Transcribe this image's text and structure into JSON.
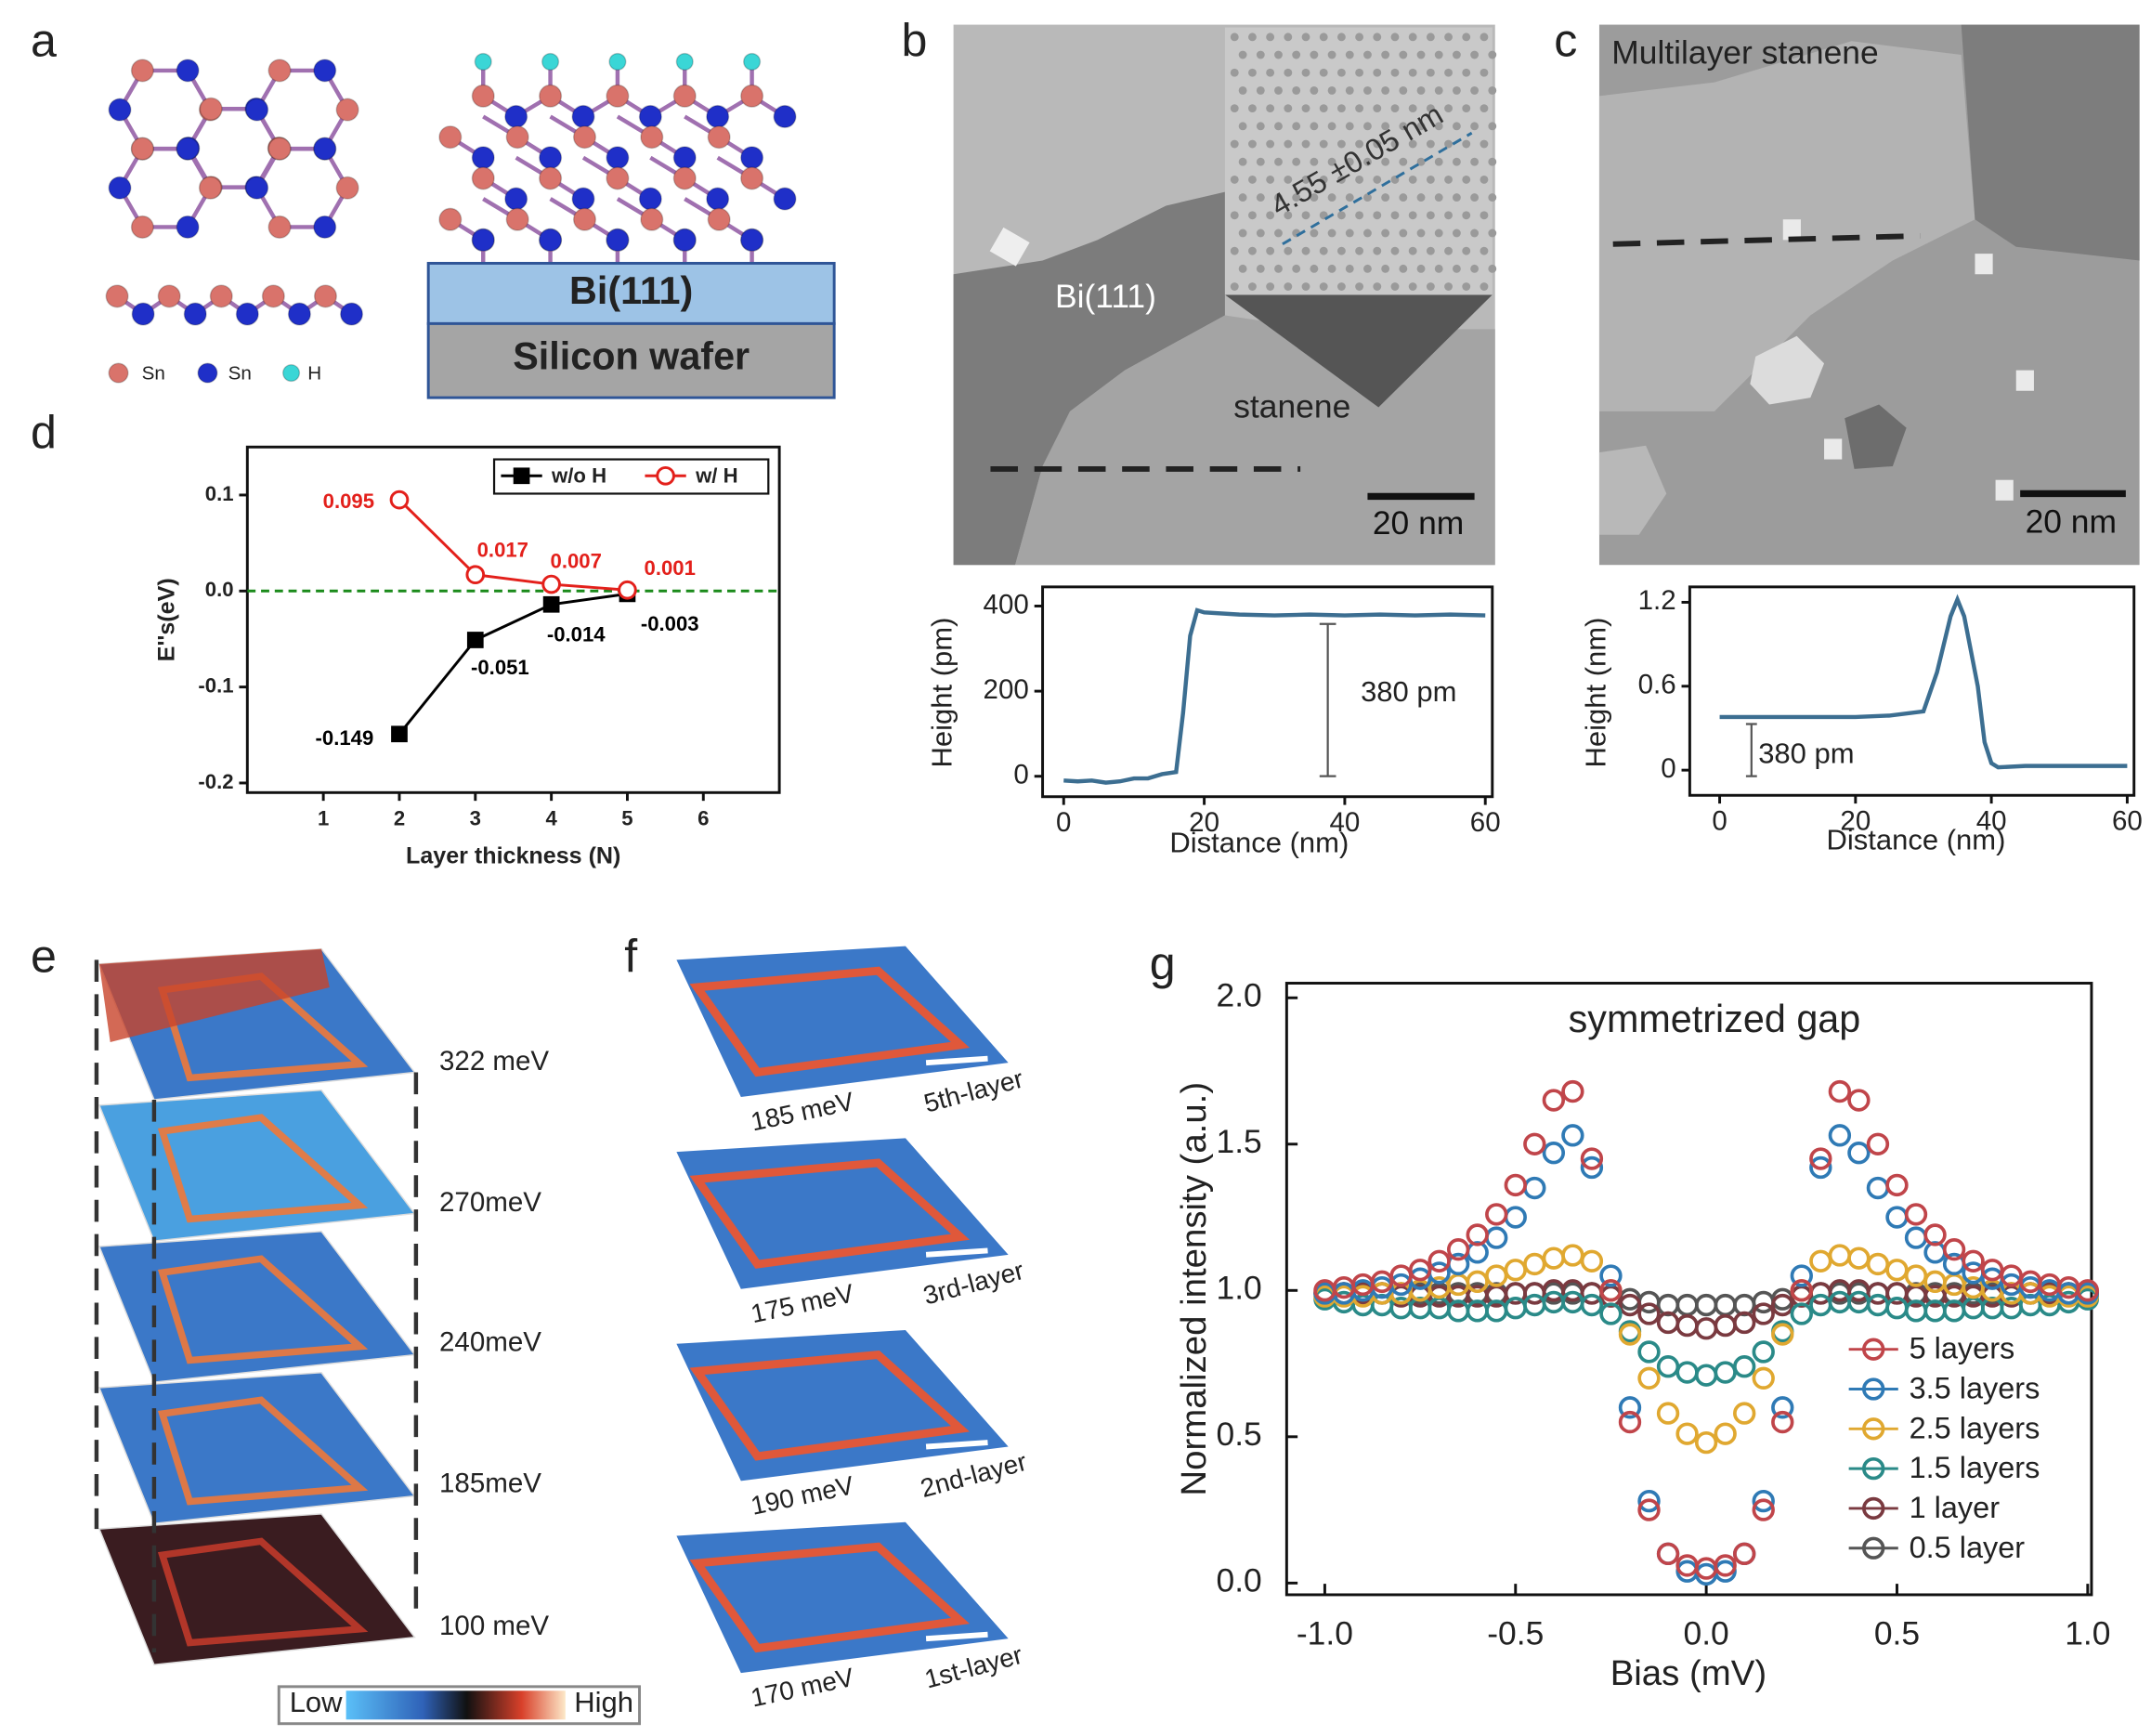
{
  "figure": {
    "panel_labels": [
      "a",
      "b",
      "c",
      "d",
      "e",
      "f",
      "g"
    ],
    "a": {
      "legend": [
        "Sn",
        "Sn",
        "H"
      ],
      "substrate": "Bi(111)",
      "wafer": "Silicon wafer"
    },
    "b": {
      "terrace": "Bi(111)",
      "island": "stanene",
      "inset_period": "4.55 ±0.05 nm",
      "scale_bar": "20 nm"
    },
    "c": {
      "title": "Multilayer stanene",
      "scale_bar": "20 nm"
    },
    "e": {
      "energies": [
        "322 meV",
        "270meV",
        "240meV",
        "185meV",
        "100 meV"
      ],
      "colorbar": [
        "Low",
        "High"
      ]
    },
    "f": {
      "maps": [
        {
          "energy": "185 meV",
          "layer": "5th-layer"
        },
        {
          "energy": "175 meV",
          "layer": "3rd-layer"
        },
        {
          "energy": "190 meV",
          "layer": "2nd-layer"
        },
        {
          "energy": "170 meV",
          "layer": "1st-layer"
        }
      ]
    }
  },
  "chart_data": [
    {
      "type": "line",
      "xlabel": "Layer thickness (N)",
      "ylabel": "E''s(eV)",
      "x": [
        2,
        3,
        4,
        5
      ],
      "series": [
        {
          "name": "w/o H",
          "color": "#000000",
          "marker": "square",
          "values": [
            -0.149,
            -0.051,
            -0.014,
            -0.003
          ]
        },
        {
          "name": "w/ H",
          "color": "#e3201b",
          "marker": "open-circle",
          "values": [
            0.095,
            0.017,
            0.007,
            0.001
          ]
        }
      ],
      "xlim": [
        0,
        7
      ],
      "ylim": [
        -0.21,
        0.15
      ],
      "xticks": [
        1,
        2,
        3,
        4,
        5,
        6
      ],
      "yticks": [
        0.1,
        {
          "value": 0,
          "label": "0.0"
        },
        -0.1,
        -0.2
      ],
      "reference_line": {
        "value": 0,
        "color": "#1a8a1a"
      },
      "data_labels": true,
      "legend": "upper-right"
    },
    {
      "type": "line",
      "xlabel": "Distance (nm)",
      "ylabel": "Height (pm)",
      "annotation": "380 pm",
      "x": [
        0,
        2,
        4,
        6,
        8,
        10,
        12,
        14,
        16,
        17,
        18,
        19,
        20,
        25,
        30,
        35,
        40,
        45,
        50,
        55,
        60
      ],
      "series": [
        {
          "color": "#3c6e91",
          "values": [
            -10,
            -12,
            -10,
            -15,
            -12,
            -5,
            -5,
            5,
            10,
            150,
            330,
            390,
            385,
            380,
            378,
            380,
            378,
            380,
            378,
            380,
            378
          ]
        }
      ],
      "xlim": [
        -3,
        61
      ],
      "ylim": [
        -48,
        445
      ],
      "xticks": [
        0,
        20,
        40,
        60
      ],
      "yticks": [
        0,
        200,
        400
      ]
    },
    {
      "type": "line",
      "xlabel": "Distance (nm)",
      "ylabel": "Height (nm)",
      "annotation": "380 pm",
      "x": [
        0,
        5,
        10,
        20,
        25,
        30,
        32,
        34,
        35,
        36,
        38,
        39,
        40,
        41,
        45,
        50,
        55,
        60
      ],
      "series": [
        {
          "color": "#3c6e91",
          "values": [
            0.38,
            0.38,
            0.38,
            0.38,
            0.39,
            0.42,
            0.7,
            1.1,
            1.22,
            1.1,
            0.6,
            0.2,
            0.05,
            0.02,
            0.03,
            0.03,
            0.03,
            0.03
          ]
        }
      ],
      "xlim": [
        -4.4,
        61
      ],
      "ylim": [
        -0.18,
        1.31
      ],
      "xticks": [
        0,
        20,
        40,
        60
      ],
      "yticks": [
        0,
        0.6,
        1.2
      ]
    },
    {
      "type": "scatter",
      "title": "symmetrized gap",
      "xlabel": "Bias (mV)",
      "ylabel": "Normalized intensity (a.u.)",
      "x": [
        -1,
        -0.95,
        -0.9,
        -0.85,
        -0.8,
        -0.75,
        -0.7,
        -0.65,
        -0.6,
        -0.55,
        -0.5,
        -0.45,
        -0.4,
        -0.35,
        -0.3,
        -0.25,
        -0.2,
        -0.15,
        -0.1,
        -0.05,
        0,
        0.05,
        0.1,
        0.15,
        0.2,
        0.25,
        0.3,
        0.35,
        0.4,
        0.45,
        0.5,
        0.55,
        0.6,
        0.65,
        0.7,
        0.75,
        0.8,
        0.85,
        0.9,
        0.95,
        1
      ],
      "series": [
        {
          "name": "5 layers",
          "color": "#c0454a",
          "values": [
            1.0,
            1.01,
            1.02,
            1.03,
            1.05,
            1.07,
            1.1,
            1.14,
            1.19,
            1.26,
            1.36,
            1.5,
            1.65,
            1.68,
            1.45,
            1.0,
            0.55,
            0.25,
            0.1,
            0.06,
            0.05,
            0.06,
            0.1,
            0.25,
            0.55,
            1.0,
            1.45,
            1.68,
            1.65,
            1.5,
            1.36,
            1.26,
            1.19,
            1.14,
            1.1,
            1.07,
            1.05,
            1.03,
            1.02,
            1.01,
            1.0
          ]
        },
        {
          "name": "3.5 layers",
          "color": "#2f7ab5",
          "values": [
            0.99,
            0.99,
            1.0,
            1.01,
            1.02,
            1.04,
            1.06,
            1.09,
            1.13,
            1.18,
            1.25,
            1.35,
            1.47,
            1.53,
            1.42,
            1.05,
            0.6,
            0.28,
            0.1,
            0.04,
            0.03,
            0.04,
            0.1,
            0.28,
            0.6,
            1.05,
            1.42,
            1.53,
            1.47,
            1.35,
            1.25,
            1.18,
            1.13,
            1.09,
            1.06,
            1.04,
            1.02,
            1.01,
            1.0,
            0.99,
            0.99
          ]
        },
        {
          "name": "2.5 layers",
          "color": "#e0a830",
          "values": [
            0.98,
            0.98,
            0.98,
            0.99,
            0.99,
            1.0,
            1.01,
            1.02,
            1.03,
            1.05,
            1.07,
            1.09,
            1.11,
            1.12,
            1.1,
            1.0,
            0.85,
            0.7,
            0.58,
            0.51,
            0.48,
            0.51,
            0.58,
            0.7,
            0.85,
            1.0,
            1.1,
            1.12,
            1.11,
            1.09,
            1.07,
            1.05,
            1.03,
            1.02,
            1.01,
            1.0,
            0.99,
            0.99,
            0.98,
            0.98,
            0.98
          ]
        },
        {
          "name": "1.5 layers",
          "color": "#2a8a88",
          "values": [
            0.97,
            0.96,
            0.95,
            0.95,
            0.94,
            0.94,
            0.94,
            0.93,
            0.93,
            0.93,
            0.94,
            0.95,
            0.96,
            0.96,
            0.95,
            0.92,
            0.86,
            0.79,
            0.74,
            0.72,
            0.71,
            0.72,
            0.74,
            0.79,
            0.86,
            0.92,
            0.95,
            0.96,
            0.96,
            0.95,
            0.94,
            0.93,
            0.93,
            0.93,
            0.94,
            0.94,
            0.94,
            0.95,
            0.95,
            0.96,
            0.97
          ]
        },
        {
          "name": "1 layer",
          "color": "#7a3a40",
          "values": [
            0.99,
            0.99,
            0.99,
            0.99,
            0.98,
            0.98,
            0.98,
            0.98,
            0.98,
            0.98,
            0.99,
            0.99,
            1.0,
            1.0,
            0.99,
            0.98,
            0.95,
            0.92,
            0.89,
            0.88,
            0.87,
            0.88,
            0.89,
            0.92,
            0.95,
            0.98,
            0.99,
            1.0,
            1.0,
            0.99,
            0.99,
            0.98,
            0.98,
            0.98,
            0.98,
            0.98,
            0.98,
            0.99,
            0.99,
            0.99,
            0.99
          ]
        },
        {
          "name": "0.5 layer",
          "color": "#555555",
          "values": [
            0.99,
            0.99,
            0.99,
            0.99,
            0.99,
            0.99,
            0.99,
            0.99,
            0.99,
            0.99,
            0.99,
            0.99,
            0.99,
            0.99,
            0.99,
            0.98,
            0.97,
            0.96,
            0.95,
            0.95,
            0.95,
            0.95,
            0.95,
            0.96,
            0.97,
            0.98,
            0.99,
            0.99,
            0.99,
            0.99,
            0.99,
            0.99,
            0.99,
            0.99,
            0.99,
            0.99,
            0.99,
            0.99,
            0.99,
            0.99,
            0.99
          ]
        }
      ],
      "xlim": [
        -1.1,
        1.01
      ],
      "ylim": [
        -0.04,
        2.05
      ],
      "xticks": [
        {
          "value": -1,
          "label": "-1.0"
        },
        -0.5,
        {
          "value": 0,
          "label": "0.0"
        },
        0.5,
        {
          "value": 1,
          "label": "1.0"
        }
      ],
      "yticks": [
        {
          "value": 0,
          "label": "0.0"
        },
        0.5,
        {
          "value": 1,
          "label": "1.0"
        },
        1.5,
        {
          "value": 2,
          "label": "2.0"
        }
      ],
      "legend": "lower-right"
    }
  ]
}
